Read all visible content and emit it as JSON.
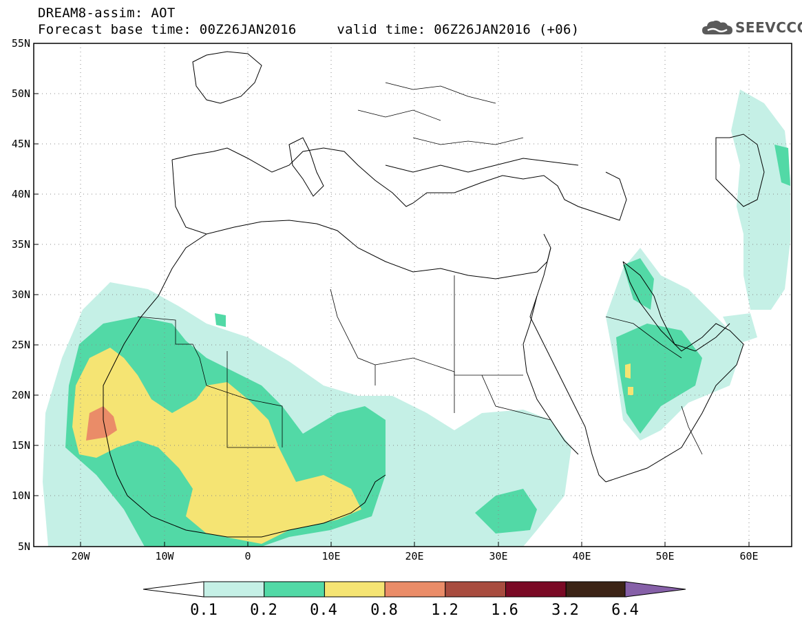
{
  "header": {
    "line1": "DREAM8-assim: AOT",
    "line2": "Forecast base time: 00Z26JAN2016     valid time: 06Z26JAN2016 (+06)"
  },
  "logo": {
    "text": "SEEVCCC",
    "icon": "cloud-logo-icon"
  },
  "map": {
    "lat_labels": [
      "55N",
      "50N",
      "45N",
      "40N",
      "35N",
      "30N",
      "25N",
      "20N",
      "15N",
      "10N",
      "5N"
    ],
    "lon_labels": [
      "20W",
      "10W",
      "0",
      "10E",
      "20E",
      "30E",
      "40E",
      "50E",
      "60E"
    ],
    "extent": {
      "lon_min": -25,
      "lon_max": 65,
      "lat_min": 5,
      "lat_max": 55
    },
    "grid": "dotted"
  },
  "colorbar": {
    "colors": [
      "#c5f0e6",
      "#52d9a6",
      "#f5e473",
      "#ea8c68",
      "#a84c3f",
      "#7a0a25",
      "#3c2416",
      "#8660a8"
    ],
    "tick_labels": [
      "0.1",
      "0.2",
      "0.4",
      "0.8",
      "1.2",
      "1.6",
      "3.2",
      "6.4"
    ]
  }
}
